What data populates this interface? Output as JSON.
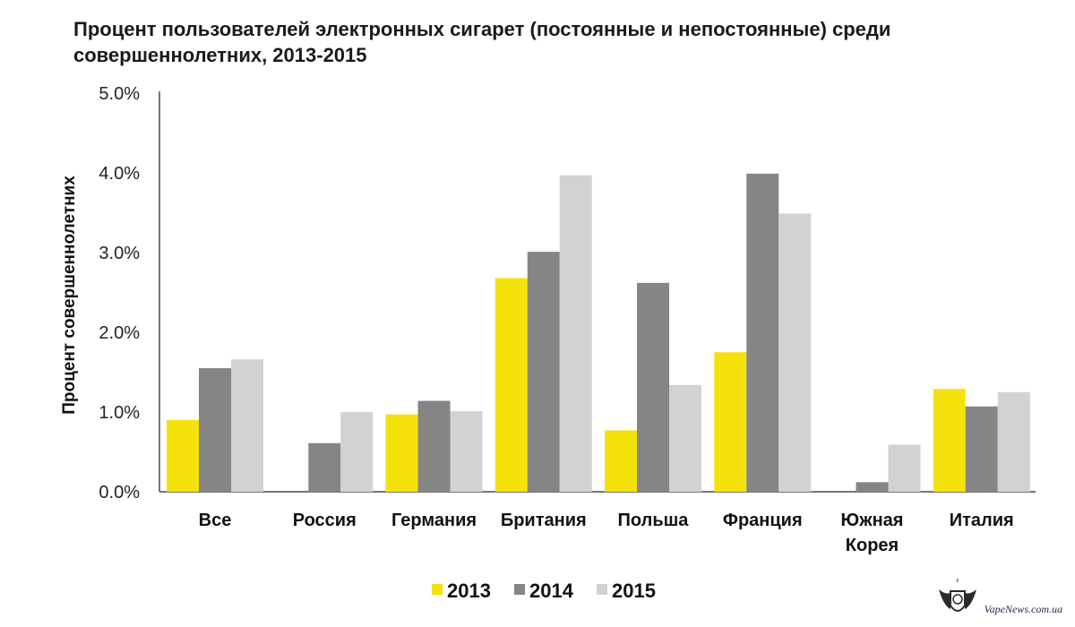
{
  "chart_data": {
    "type": "bar",
    "title": "Процент пользователей электронных сигарет (постоянные и непостоянные) среди совершеннолетних, 2013-2015",
    "xlabel": "",
    "ylabel": "Процент совершеннолетних",
    "ylim": [
      0,
      5
    ],
    "yticks": [
      0,
      1,
      2,
      3,
      4,
      5
    ],
    "ytick_labels": [
      "0.0%",
      "1.0%",
      "2.0%",
      "3.0%",
      "4.0%",
      "5.0%"
    ],
    "categories": [
      [
        "Все"
      ],
      [
        "Россия"
      ],
      [
        "Германия"
      ],
      [
        "Британия"
      ],
      [
        "Польша"
      ],
      [
        "Франция"
      ],
      [
        "Южная",
        "Корея"
      ],
      [
        "Италия"
      ]
    ],
    "series": [
      {
        "name": "2013",
        "color": "#f5e20a",
        "values": [
          0.9,
          0.0,
          0.97,
          2.68,
          0.77,
          1.75,
          0.0,
          1.29
        ]
      },
      {
        "name": "2014",
        "color": "#858585",
        "values": [
          1.55,
          0.61,
          1.14,
          3.01,
          2.62,
          3.99,
          0.12,
          1.07
        ]
      },
      {
        "name": "2015",
        "color": "#d2d2d2",
        "values": [
          1.66,
          1.0,
          1.01,
          3.97,
          1.34,
          3.49,
          0.59,
          1.25
        ]
      }
    ],
    "legend_position": "bottom-center",
    "grid": false
  },
  "watermark": {
    "text": "VapeNews.com.ua",
    "logo": "winged-shield-logo"
  }
}
